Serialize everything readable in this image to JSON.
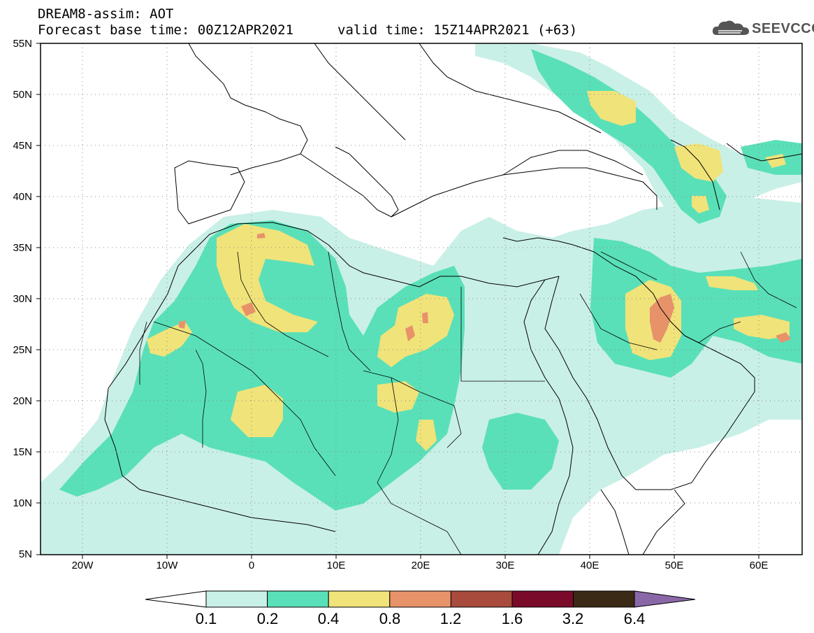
{
  "header": {
    "title": "DREAM8-assim: AOT",
    "base_time": "Forecast base time: 00Z12APR2021",
    "valid_time": "valid time: 15Z14APR2021 (+63)"
  },
  "logo": {
    "text": "SEEVCCC",
    "icon": "cloud-icon"
  },
  "map": {
    "variable": "AOT",
    "lat_range": [
      5,
      55
    ],
    "lon_range": [
      -25,
      65
    ],
    "lat_labels": [
      "55N",
      "50N",
      "45N",
      "40N",
      "35N",
      "30N",
      "25N",
      "20N",
      "15N",
      "10N",
      "5N"
    ],
    "lon_labels": [
      "20W",
      "10W",
      "0",
      "10E",
      "20E",
      "30E",
      "40E",
      "50E",
      "60E"
    ],
    "grid": "dotted"
  },
  "colorbar": {
    "labels": [
      "0.1",
      "0.2",
      "0.4",
      "0.8",
      "1.2",
      "1.6",
      "3.2",
      "6.4"
    ],
    "colors": [
      "#c9f0e6",
      "#5ae0b8",
      "#f0e37a",
      "#e8926a",
      "#a84b3c",
      "#7a0a2a",
      "#3b2a16"
    ],
    "under_color": "#ffffff",
    "over_color": "#8a68a8"
  }
}
